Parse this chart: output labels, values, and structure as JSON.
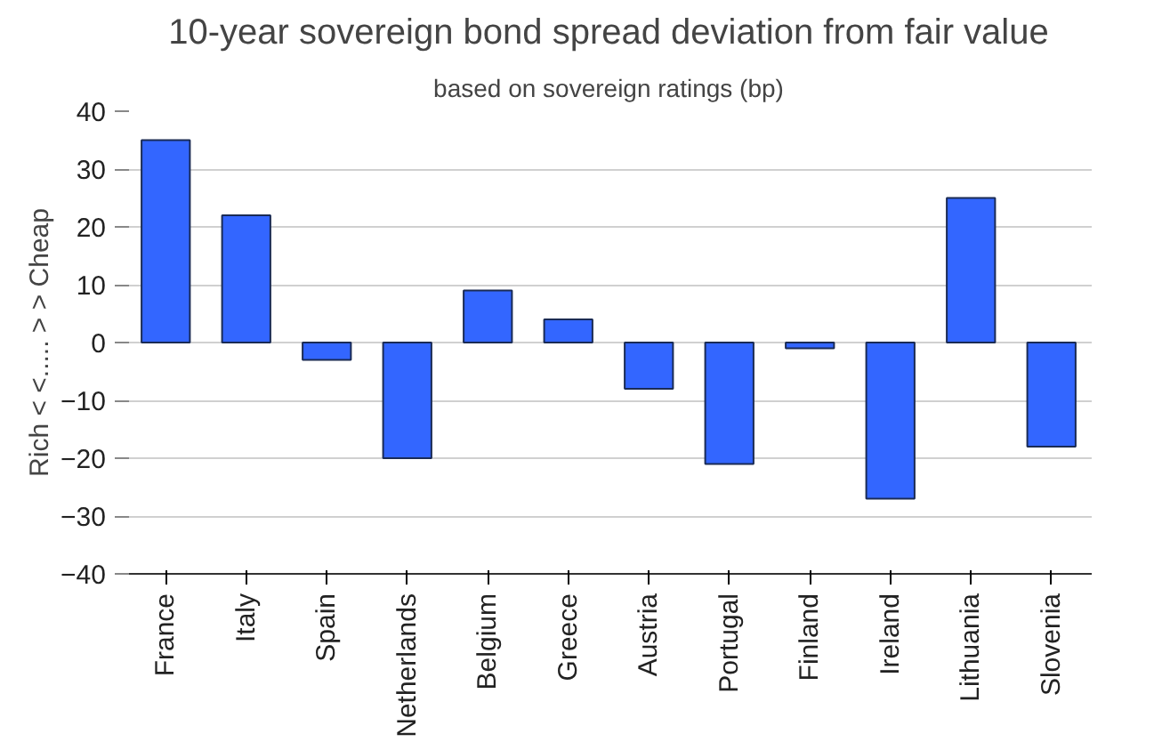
{
  "chart_data": {
    "type": "bar",
    "title": "10-year sovereign bond spread deviation from fair value",
    "subtitle": "based on sovereign ratings (bp)",
    "ylabel": "Rich < <..... > > Cheap",
    "categories": [
      "France",
      "Italy",
      "Spain",
      "Netherlands",
      "Belgium",
      "Greece",
      "Austria",
      "Portugal",
      "Finland",
      "Ireland",
      "Lithuania",
      "Slovenia"
    ],
    "values": [
      35,
      22,
      -3,
      -20,
      9,
      4,
      -8,
      -21,
      -1,
      -27,
      25,
      -18
    ],
    "color": "#3366ff",
    "ylim": [
      -40,
      40
    ],
    "yticks": [
      -40,
      -30,
      -20,
      -10,
      0,
      10,
      20,
      30,
      40
    ],
    "grid": "y"
  }
}
